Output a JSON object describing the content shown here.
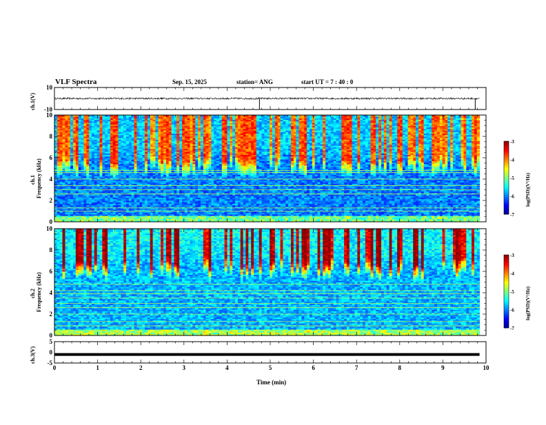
{
  "header": {
    "title": "VLF Spectra",
    "date": "Sep. 15, 2025",
    "station": "station= ANG",
    "start": "start  UT =   7 : 40 : 0"
  },
  "colors": {
    "bg": "#ffffff",
    "axis": "#000000",
    "cmap": [
      "#00008f",
      "#0000ff",
      "#0080ff",
      "#00ffff",
      "#80ff80",
      "#ffff00",
      "#ff8000",
      "#ff0000",
      "#8f0000"
    ]
  },
  "chart_data": [
    {
      "type": "line",
      "name": "ch1-waveform",
      "ylabel": "ch.1(V)",
      "ylim": [
        -10,
        10
      ],
      "yticks": [
        "10",
        "-10"
      ],
      "baseline": 0,
      "spikes_min": [
        4.75,
        9.75
      ]
    },
    {
      "type": "heatmap",
      "name": "ch1-spectrogram",
      "ylabel_channel": "ch.1",
      "ylabel": "Frequency  (kHz)",
      "ylim": [
        0,
        10
      ],
      "yticks": [
        "0",
        "2",
        "4",
        "6",
        "8",
        "10"
      ],
      "xlim": [
        0,
        9.85
      ],
      "colorbar": {
        "label": "log(PSD)(V²/Hz)",
        "range": [
          -7,
          -3
        ],
        "ticks": [
          "-3",
          "-4",
          "-5",
          "-6",
          "-7"
        ]
      },
      "lines_khz": [
        4.8,
        4.6,
        4.0,
        3.4,
        3.0,
        2.6,
        1.3,
        1.0
      ],
      "background_level": -6.0,
      "burst_top_khz": 6.0
    },
    {
      "type": "heatmap",
      "name": "ch2-spectrogram",
      "ylabel_channel": "ch.2",
      "ylabel": "Frequency  (kHz)",
      "ylim": [
        0,
        10
      ],
      "yticks": [
        "0",
        "2",
        "4",
        "6",
        "8",
        "10"
      ],
      "xlim": [
        0,
        9.85
      ],
      "colorbar": {
        "label": "log(PSD)(V²/Hz)",
        "range": [
          -7,
          -3
        ],
        "ticks": [
          "-3",
          "-4",
          "-5",
          "-6",
          "-7"
        ]
      },
      "lines_khz": [
        4.8,
        4.2,
        3.9,
        3.5,
        3.0,
        2.6,
        2.0,
        1.3,
        0.9
      ],
      "background_level": -5.8,
      "burst_top_khz": 7.0
    },
    {
      "type": "line",
      "name": "ch3-waveform",
      "ylabel": "ch.3(V)",
      "ylim": [
        -5,
        5
      ],
      "yticks": [
        "5",
        "0",
        "-5"
      ],
      "baseline": -1
    }
  ],
  "xaxis": {
    "label": "Time  (min)",
    "range": [
      0,
      10
    ],
    "ticks": [
      "0",
      "1",
      "2",
      "3",
      "4",
      "5",
      "6",
      "7",
      "8",
      "9",
      "10"
    ]
  }
}
